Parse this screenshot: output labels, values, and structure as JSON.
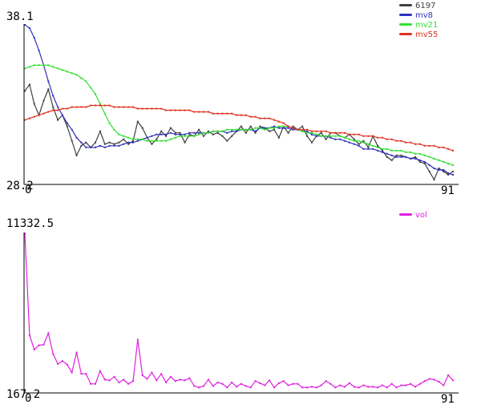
{
  "chart_data": [
    {
      "type": "line",
      "ylim": [
        28.2,
        38.1
      ],
      "y_min_label": "28.2",
      "y_max_label": "38.1",
      "x_start_label": "0",
      "x_end_label": "91",
      "legend_placement": "top-right",
      "x": [
        0,
        1,
        2,
        3,
        4,
        5,
        6,
        7,
        8,
        9,
        10,
        11,
        12,
        13,
        14,
        15,
        16,
        17,
        18,
        19,
        20,
        21,
        22,
        23,
        24,
        25,
        26,
        27,
        28,
        29,
        30,
        31,
        32,
        33,
        34,
        35,
        36,
        37,
        38,
        39,
        40,
        41,
        42,
        43,
        44,
        45,
        46,
        47,
        48,
        49,
        50,
        51,
        52,
        53,
        54,
        55,
        56,
        57,
        58,
        59,
        60,
        61,
        62,
        63,
        64,
        65,
        66,
        67,
        68,
        69,
        70,
        71,
        72,
        73,
        74,
        75,
        76,
        77,
        78,
        79,
        80,
        81,
        82,
        83,
        84,
        85,
        86,
        87,
        88,
        89,
        90,
        91
      ],
      "series": [
        {
          "name": "6197",
          "color": "#404040",
          "values": [
            34.0,
            34.4,
            33.2,
            32.5,
            33.4,
            34.1,
            33.0,
            32.2,
            32.5,
            31.8,
            30.9,
            30.0,
            30.6,
            30.8,
            30.5,
            30.8,
            31.5,
            30.7,
            30.8,
            30.7,
            30.8,
            31.0,
            30.7,
            30.9,
            32.1,
            31.7,
            31.1,
            30.7,
            31.0,
            31.5,
            31.2,
            31.7,
            31.4,
            31.4,
            30.8,
            31.3,
            31.2,
            31.6,
            31.2,
            31.5,
            31.3,
            31.4,
            31.2,
            30.9,
            31.2,
            31.5,
            31.8,
            31.4,
            31.8,
            31.4,
            31.8,
            31.7,
            31.5,
            31.6,
            31.1,
            31.8,
            31.4,
            31.8,
            31.6,
            31.8,
            31.2,
            30.8,
            31.2,
            31.4,
            31.0,
            31.4,
            31.4,
            31.2,
            31.1,
            31.3,
            31.0,
            30.7,
            30.9,
            30.5,
            31.2,
            30.6,
            30.3,
            29.9,
            29.7,
            30.0,
            30.0,
            29.9,
            29.8,
            29.9,
            29.6,
            29.5,
            29.0,
            28.5,
            29.2,
            29.0,
            28.8,
            29.0
          ]
        },
        {
          "name": "mv8",
          "color": "#3030c0",
          "values": [
            38.1,
            37.9,
            37.3,
            36.5,
            35.6,
            34.6,
            33.7,
            33.0,
            32.5,
            32.0,
            31.6,
            31.1,
            30.8,
            30.5,
            30.5,
            30.5,
            30.6,
            30.5,
            30.6,
            30.6,
            30.6,
            30.7,
            30.8,
            30.8,
            30.9,
            31.0,
            31.1,
            31.2,
            31.3,
            31.3,
            31.3,
            31.4,
            31.3,
            31.3,
            31.3,
            31.4,
            31.4,
            31.4,
            31.4,
            31.4,
            31.5,
            31.5,
            31.5,
            31.4,
            31.5,
            31.5,
            31.6,
            31.6,
            31.6,
            31.5,
            31.7,
            31.7,
            31.7,
            31.8,
            31.7,
            31.7,
            31.7,
            31.6,
            31.6,
            31.5,
            31.5,
            31.3,
            31.2,
            31.2,
            31.2,
            31.1,
            31.0,
            31.0,
            30.9,
            30.8,
            30.7,
            30.6,
            30.4,
            30.4,
            30.4,
            30.3,
            30.2,
            30.1,
            30.0,
            29.9,
            29.9,
            29.9,
            29.8,
            29.8,
            29.7,
            29.6,
            29.4,
            29.2,
            29.1,
            29.1,
            28.9,
            28.8
          ]
        },
        {
          "name": "mv21",
          "color": "#30e030",
          "values": [
            35.4,
            35.5,
            35.6,
            35.6,
            35.6,
            35.6,
            35.5,
            35.4,
            35.3,
            35.2,
            35.1,
            35.0,
            34.8,
            34.6,
            34.2,
            33.8,
            33.2,
            32.6,
            32.0,
            31.6,
            31.3,
            31.2,
            31.1,
            31.0,
            31.0,
            31.0,
            30.9,
            30.9,
            30.9,
            30.9,
            30.9,
            31.0,
            31.1,
            31.2,
            31.2,
            31.2,
            31.2,
            31.3,
            31.4,
            31.4,
            31.5,
            31.5,
            31.5,
            31.6,
            31.6,
            31.6,
            31.6,
            31.6,
            31.6,
            31.7,
            31.7,
            31.6,
            31.7,
            31.7,
            31.8,
            31.8,
            31.8,
            31.7,
            31.6,
            31.5,
            31.4,
            31.4,
            31.3,
            31.2,
            31.2,
            31.2,
            31.2,
            31.2,
            31.1,
            31.0,
            30.9,
            30.9,
            30.8,
            30.7,
            30.6,
            30.5,
            30.4,
            30.4,
            30.3,
            30.3,
            30.3,
            30.2,
            30.2,
            30.1,
            30.1,
            30.0,
            29.9,
            29.8,
            29.7,
            29.6,
            29.5,
            29.4
          ]
        },
        {
          "name": "mv55",
          "color": "#e03020",
          "values": [
            32.2,
            32.3,
            32.4,
            32.5,
            32.6,
            32.7,
            32.8,
            32.8,
            32.9,
            32.9,
            33.0,
            33.0,
            33.0,
            33.0,
            33.1,
            33.1,
            33.1,
            33.1,
            33.1,
            33.0,
            33.0,
            33.0,
            33.0,
            33.0,
            32.9,
            32.9,
            32.9,
            32.9,
            32.9,
            32.9,
            32.8,
            32.8,
            32.8,
            32.8,
            32.8,
            32.8,
            32.7,
            32.7,
            32.7,
            32.7,
            32.6,
            32.6,
            32.6,
            32.6,
            32.6,
            32.5,
            32.5,
            32.5,
            32.4,
            32.4,
            32.3,
            32.3,
            32.3,
            32.2,
            32.1,
            32.0,
            31.8,
            31.7,
            31.6,
            31.6,
            31.6,
            31.5,
            31.5,
            31.5,
            31.5,
            31.4,
            31.4,
            31.4,
            31.4,
            31.3,
            31.3,
            31.3,
            31.2,
            31.2,
            31.2,
            31.1,
            31.1,
            31.0,
            31.0,
            30.9,
            30.9,
            30.8,
            30.8,
            30.7,
            30.7,
            30.6,
            30.6,
            30.6,
            30.5,
            30.5,
            30.4,
            30.3
          ]
        }
      ]
    },
    {
      "type": "line",
      "ylim": [
        167.2,
        11332.5
      ],
      "y_min_label": "167.2",
      "y_max_label": "11332.5",
      "x_start_label": "0",
      "x_end_label": "91",
      "legend_placement": "top-right",
      "x": [
        0,
        1,
        2,
        3,
        4,
        5,
        6,
        7,
        8,
        9,
        10,
        11,
        12,
        13,
        14,
        15,
        16,
        17,
        18,
        19,
        20,
        21,
        22,
        23,
        24,
        25,
        26,
        27,
        28,
        29,
        30,
        31,
        32,
        33,
        34,
        35,
        36,
        37,
        38,
        39,
        40,
        41,
        42,
        43,
        44,
        45,
        46,
        47,
        48,
        49,
        50,
        51,
        52,
        53,
        54,
        55,
        56,
        57,
        58,
        59,
        60,
        61,
        62,
        63,
        64,
        65,
        66,
        67,
        68,
        69,
        70,
        71,
        72,
        73,
        74,
        75,
        76,
        77,
        78,
        79,
        80,
        81,
        82,
        83,
        84,
        85,
        86,
        87,
        88,
        89,
        90,
        91
      ],
      "series": [
        {
          "name": "vol",
          "color": "#e020e0",
          "values": [
            11332.5,
            4200,
            3200,
            3500,
            3550,
            4350,
            2900,
            2200,
            2400,
            2150,
            1600,
            3000,
            1500,
            1500,
            800,
            800,
            1700,
            1100,
            1050,
            1300,
            900,
            1100,
            800,
            1000,
            3900,
            1400,
            1150,
            1600,
            1050,
            1500,
            900,
            1300,
            1000,
            1100,
            1050,
            1200,
            650,
            550,
            650,
            1100,
            650,
            900,
            800,
            550,
            900,
            600,
            800,
            650,
            550,
            1000,
            850,
            700,
            1050,
            550,
            850,
            1000,
            700,
            800,
            800,
            550,
            550,
            600,
            550,
            700,
            1000,
            800,
            550,
            700,
            600,
            850,
            600,
            550,
            700,
            600,
            600,
            550,
            700,
            550,
            800,
            550,
            700,
            700,
            800,
            600,
            800,
            1000,
            1150,
            1100,
            950,
            700,
            1400,
            1050
          ]
        }
      ]
    }
  ]
}
